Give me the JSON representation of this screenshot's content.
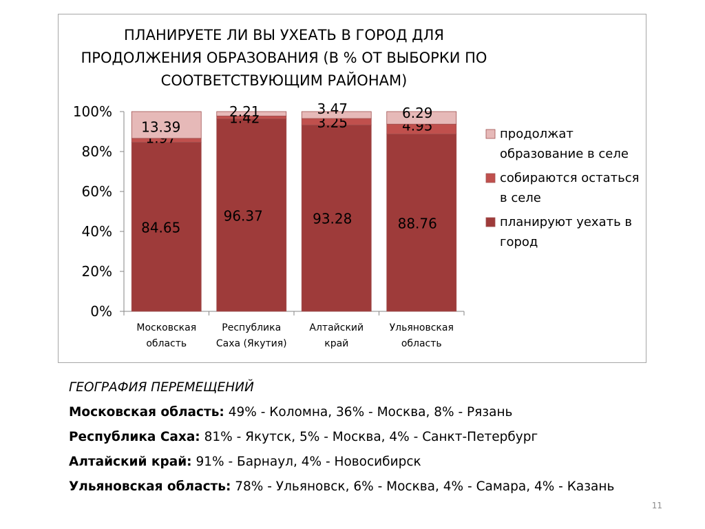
{
  "chart_data": {
    "type": "bar",
    "stacked": true,
    "percent_stacked": true,
    "title": "ПЛАНИРУЕТЕ ЛИ ВЫ УХЕАТЬ В ГОРОД ДЛЯ ПРОДОЛЖЕНИЯ ОБРАЗОВАНИЯ (В % ОТ ВЫБОРКИ ПО СООТВЕТСТВУЮЩИМ РАЙОНАМ)",
    "title_lines": [
      "ПЛАНИРУЕТЕ ЛИ ВЫ УХЕАТЬ В ГОРОД ДЛЯ",
      "ПРОДОЛЖЕНИЯ ОБРАЗОВАНИЯ (В % ОТ ВЫБОРКИ ПО",
      "СООТВЕТСТВУЮЩИМ РАЙОНАМ)"
    ],
    "categories": [
      [
        "Московская",
        "область"
      ],
      [
        "Республика",
        "Саха (Якутия)"
      ],
      [
        "Алтайский",
        "край"
      ],
      [
        "Ульяновская",
        "область"
      ]
    ],
    "series": [
      {
        "name": "планируют уехать в город",
        "legend_lines": [
          "планируют уехать в",
          "город"
        ],
        "color": "#9e3b3a",
        "values": [
          84.65,
          96.37,
          93.28,
          88.76
        ],
        "labels": [
          "84.65",
          "96.37",
          "93.28",
          "88.76"
        ]
      },
      {
        "name": "собираются остаться в селе",
        "legend_lines": [
          "собираются остаться",
          "в селе"
        ],
        "color": "#c0504d",
        "values": [
          1.97,
          1.42,
          3.25,
          4.95
        ],
        "labels": [
          "1.97",
          "1.42",
          "3.25",
          "4.95"
        ]
      },
      {
        "name": "продолжат образование в селе",
        "legend_lines": [
          "продолжат",
          "образование в селе"
        ],
        "color": "#e6b9b8",
        "values": [
          13.39,
          2.21,
          3.47,
          6.29
        ],
        "labels": [
          "13.39",
          "2.21",
          "3.47",
          "6.29"
        ]
      }
    ],
    "y_ticks": [
      "0%",
      "20%",
      "40%",
      "60%",
      "80%",
      "100%"
    ],
    "ylim": [
      0,
      100
    ],
    "grid": false,
    "legend_position": "right"
  },
  "notes": {
    "heading": "ГЕОГРАФИЯ ПЕРЕМЕЩЕНИЙ",
    "lines": [
      {
        "region": "Московская область:",
        "text": " 49% - Коломна, 36% - Москва, 8% - Рязань"
      },
      {
        "region": "Республика Саха:",
        "text": " 81% - Якутск, 5% - Москва, 4% - Санкт-Петербург"
      },
      {
        "region": "Алтайский край:",
        "text": " 91% - Барнаул, 4% - Новосибирск"
      },
      {
        "region": "Ульяновская область:",
        "text": " 78% - Ульяновск, 6% - Москва, 4% - Самара, 4% - Казань"
      }
    ]
  },
  "page_number": "11"
}
